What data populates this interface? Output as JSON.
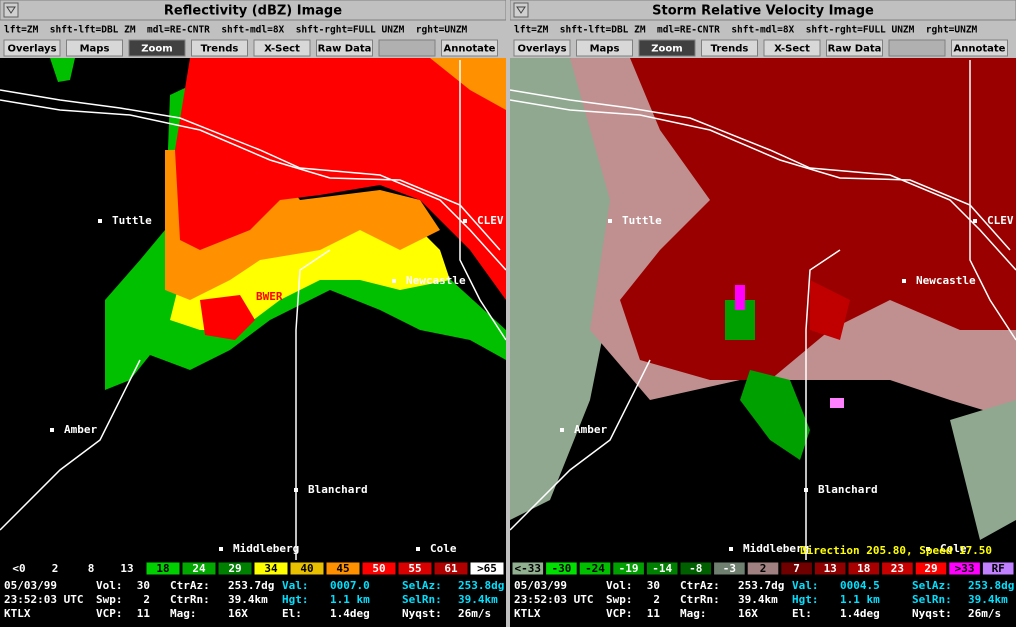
{
  "panels": [
    {
      "title": "Reflectivity (dBZ) Image",
      "shortcuts": "lft=ZM  shft-lft=DBL ZM  mdl=RE-CNTR  shft-mdl=8X  shft-rght=FULL UNZM  rght=UNZM",
      "buttons": [
        "Overlays",
        "Maps",
        "Zoom",
        "Trends",
        "X-Sect",
        "Raw Data",
        "Annotate"
      ],
      "places": [
        "Tuttle",
        "Newcastle",
        "CLEV",
        "Amber",
        "Blanchard",
        "Middleberg",
        "Cole"
      ],
      "annotation": "BWER",
      "legend": [
        {
          "label": "<0",
          "color": "#000000"
        },
        {
          "label": "2",
          "color": "#000000"
        },
        {
          "label": "8",
          "color": "#000000"
        },
        {
          "label": "13",
          "color": "#000000"
        },
        {
          "label": "18",
          "color": "#00d000"
        },
        {
          "label": "24",
          "color": "#00a800"
        },
        {
          "label": "29",
          "color": "#008000"
        },
        {
          "label": "34",
          "color": "#ffff00"
        },
        {
          "label": "40",
          "color": "#e8c000"
        },
        {
          "label": "45",
          "color": "#ff9000"
        },
        {
          "label": "50",
          "color": "#ff0000"
        },
        {
          "label": "55",
          "color": "#d80000"
        },
        {
          "label": "61",
          "color": "#b00000"
        },
        {
          "label": ">65",
          "color": "#ffffff"
        }
      ],
      "info": [
        [
          "05/03/99",
          "Vol:",
          "30",
          "CtrAz:",
          "253.7dg",
          "Val:",
          "0007.0",
          "SelAz:",
          "253.8dg"
        ],
        [
          "23:52:03 UTC",
          "Swp:",
          "2",
          "CtrRn:",
          "39.4km",
          "Hgt:",
          "1.1 km",
          "SelRn:",
          "39.4km"
        ],
        [
          "KTLX",
          "VCP:",
          "11",
          "Mag:",
          "16X",
          "El:",
          "1.4deg",
          "Nyqst:",
          "26m/s"
        ]
      ]
    },
    {
      "title": "Storm Relative Velocity Image",
      "shortcuts": "lft=ZM  shft-lft=DBL ZM  mdl=RE-CNTR  shft-mdl=8X  shft-rght=FULL UNZM  rght=UNZM",
      "buttons": [
        "Overlays",
        "Maps",
        "Zoom",
        "Trends",
        "X-Sect",
        "Raw Data",
        "Annotate"
      ],
      "places": [
        "Tuttle",
        "Newcastle",
        "CLEV",
        "Amber",
        "Blanchard",
        "Middleberg",
        "Cole"
      ],
      "annotation": "Direction 205.80, Speed 17.50",
      "legend": [
        {
          "label": "<-33",
          "color": "#90b090"
        },
        {
          "label": "-30",
          "color": "#00e000"
        },
        {
          "label": "-24",
          "color": "#00c000"
        },
        {
          "label": "-19",
          "color": "#00a000"
        },
        {
          "label": "-14",
          "color": "#008000"
        },
        {
          "label": "-8",
          "color": "#006000"
        },
        {
          "label": "-3",
          "color": "#708070"
        },
        {
          "label": "2",
          "color": "#a08080"
        },
        {
          "label": "7",
          "color": "#700000"
        },
        {
          "label": "13",
          "color": "#900000"
        },
        {
          "label": "18",
          "color": "#a80000"
        },
        {
          "label": "23",
          "color": "#c80000"
        },
        {
          "label": "29",
          "color": "#ff0000"
        },
        {
          "label": ">33",
          "color": "#ff00ff"
        },
        {
          "label": "RF",
          "color": "#c080ff"
        }
      ],
      "info": [
        [
          "05/03/99",
          "Vol:",
          "30",
          "CtrAz:",
          "253.7dg",
          "Val:",
          "0004.5",
          "SelAz:",
          "253.8dg"
        ],
        [
          "23:52:03 UTC",
          "Swp:",
          "2",
          "CtrRn:",
          "39.4km",
          "Hgt:",
          "1.1 km",
          "SelRn:",
          "39.4km"
        ],
        [
          "KTLX",
          "VCP:",
          "11",
          "Mag:",
          "16X",
          "El:",
          "1.4deg",
          "Nyqst:",
          "26m/s"
        ]
      ]
    }
  ]
}
